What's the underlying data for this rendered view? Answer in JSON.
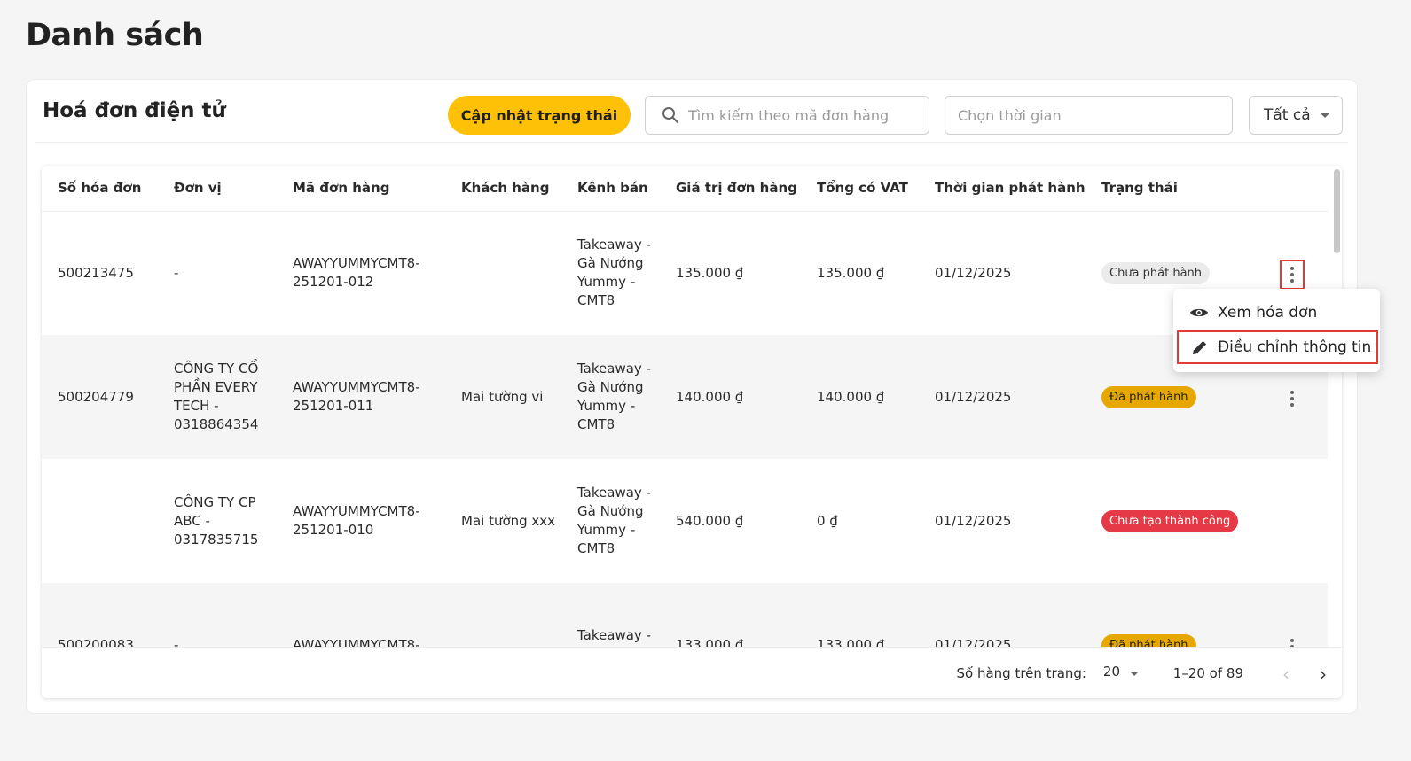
{
  "page": {
    "title": "Danh sách"
  },
  "card": {
    "title": "Hoá đơn điện tử",
    "update_button": "Cập nhật trạng thái",
    "search_placeholder": "Tìm kiếm theo mã đơn hàng",
    "date_placeholder": "Chọn thời gian",
    "filter_value": "Tất cả"
  },
  "table": {
    "headers": [
      "Số hóa đơn",
      "Đơn vị",
      "Mã đơn hàng",
      "Khách hàng",
      "Kênh bán",
      "Giá trị đơn hàng",
      "Tổng có VAT",
      "Thời gian phát hành",
      "Trạng thái"
    ],
    "rows": [
      {
        "invoice": "500213475",
        "unit": "-",
        "order": "AWAYYUMMYCMT8-251201-012",
        "customer": "",
        "channel": "Takeaway - Gà Nướng Yummy - CMT8",
        "value": "135.000 ₫",
        "vat": "135.000 ₫",
        "time": "01/12/2025",
        "status": "Chưa phát hành",
        "status_bg": "#ebebeb",
        "status_fg": "#333333"
      },
      {
        "invoice": "500204779",
        "unit": "CÔNG TY CỔ PHẦN EVERY TECH - 0318864354",
        "order": "AWAYYUMMYCMT8-251201-011",
        "customer": "Mai tường vi",
        "channel": "Takeaway - Gà Nướng Yummy - CMT8",
        "value": "140.000 ₫",
        "vat": "140.000 ₫",
        "time": "01/12/2025",
        "status": "Đã phát hành",
        "status_bg": "#e6a800",
        "status_fg": "#222222"
      },
      {
        "invoice": "",
        "unit": "CÔNG TY CP ABC - 0317835715",
        "order": "AWAYYUMMYCMT8-251201-010",
        "customer": "Mai tường xxx",
        "channel": "Takeaway - Gà Nướng Yummy - CMT8",
        "value": "540.000 ₫",
        "vat": "0 ₫",
        "time": "01/12/2025",
        "status": "Chưa tạo thành công",
        "status_bg": "#e53945",
        "status_fg": "#ffffff"
      },
      {
        "invoice": "500200083",
        "unit": "-",
        "order": "AWAYYUMMYCMT8-",
        "customer": "",
        "channel": "Takeaway - Gà Nướng",
        "value": "133.000 ₫",
        "vat": "133.000 ₫",
        "time": "01/12/2025",
        "status": "Đã phát hành",
        "status_bg": "#e6a800",
        "status_fg": "#222222"
      }
    ]
  },
  "pager": {
    "rows_label": "Số hàng trên trang:",
    "rows_value": "20",
    "range": "1–20 of 89"
  },
  "menu": {
    "view": "Xem hóa đơn",
    "edit": "Điều chỉnh thông tin"
  },
  "icons": {
    "search": "search-icon",
    "view": "eye-icon",
    "edit": "pencil-icon",
    "more": "more-vertical-icon"
  }
}
